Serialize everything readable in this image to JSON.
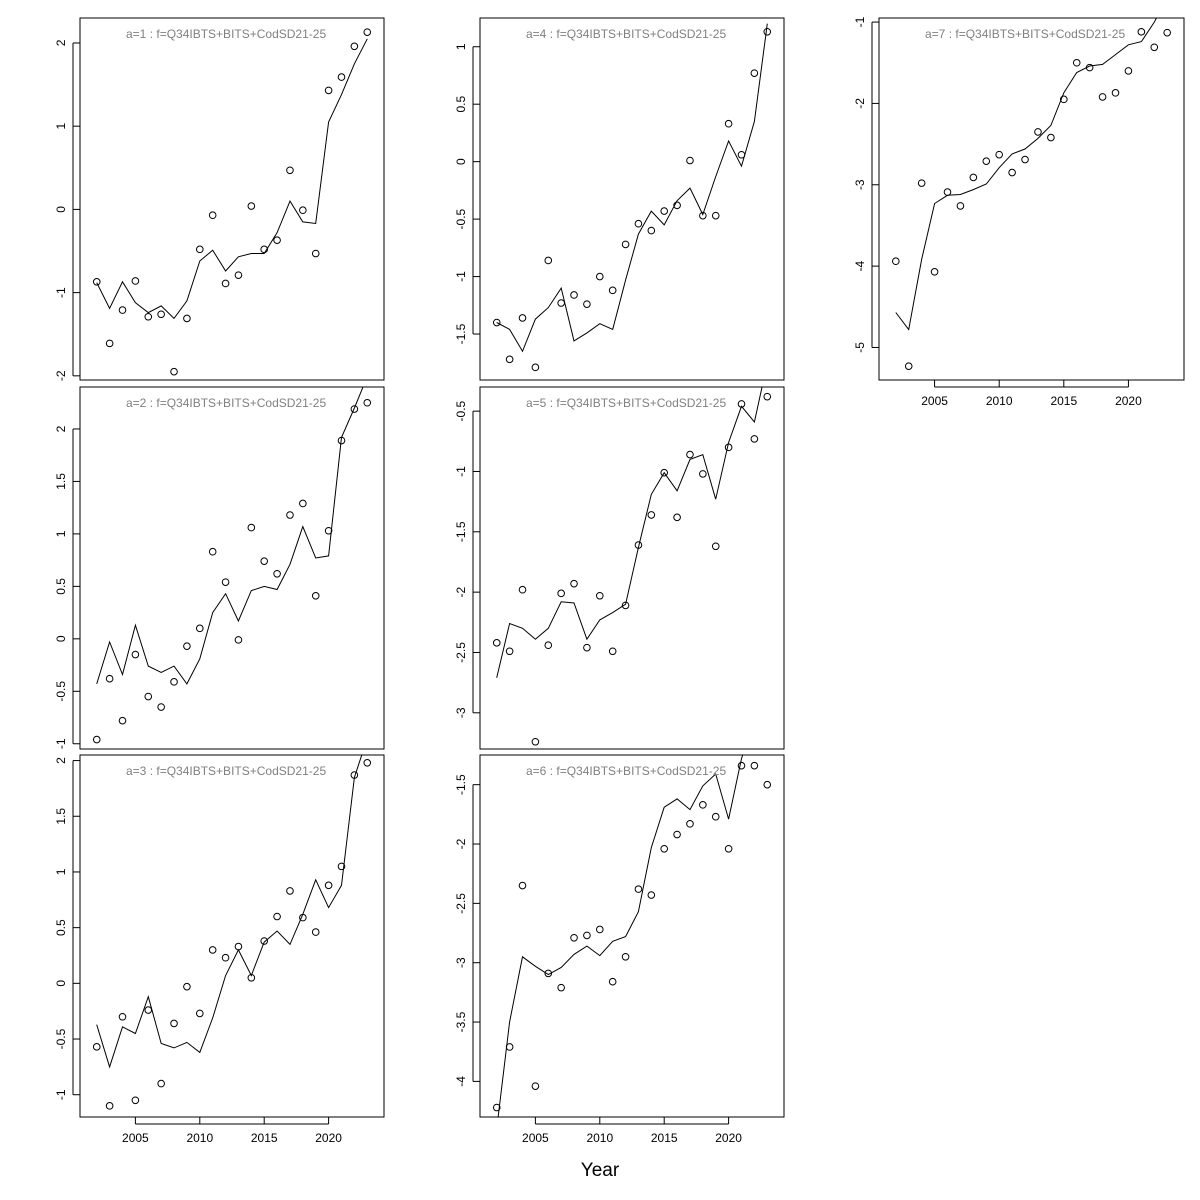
{
  "xlabel": "Year",
  "chart_data": [
    {
      "type": "line+scatter",
      "title": "a=1 : f=Q34IBTS+BITS+CodSD21-25",
      "ylim": [
        -2.05,
        2.3
      ],
      "yticks": [
        -2,
        -1,
        0,
        1,
        2
      ],
      "x": [
        2002,
        2003,
        2004,
        2005,
        2006,
        2007,
        2008,
        2009,
        2010,
        2011,
        2012,
        2013,
        2014,
        2015,
        2016,
        2017,
        2018,
        2019,
        2020,
        2021,
        2022,
        2023
      ],
      "fitted": [
        -0.88,
        -1.19,
        -0.87,
        -1.12,
        -1.24,
        -1.16,
        -1.31,
        -1.1,
        -0.62,
        -0.49,
        -0.74,
        -0.57,
        -0.53,
        -0.53,
        -0.28,
        0.1,
        -0.15,
        -0.17,
        1.05,
        1.38,
        1.75,
        2.05
      ],
      "observed": [
        -0.87,
        -1.61,
        -1.21,
        -0.86,
        -1.29,
        -1.26,
        -1.95,
        -1.31,
        -0.48,
        -0.07,
        -0.89,
        -0.79,
        0.04,
        -0.48,
        -0.37,
        0.47,
        -0.01,
        -0.53,
        1.43,
        1.59,
        1.96,
        2.13
      ]
    },
    {
      "type": "line+scatter",
      "title": "a=2 : f=Q34IBTS+BITS+CodSD21-25",
      "ylim": [
        -1.05,
        2.4
      ],
      "yticks": [
        -1.0,
        -0.5,
        0.0,
        0.5,
        1.0,
        1.5,
        2.0
      ],
      "x": [
        2002,
        2003,
        2004,
        2005,
        2006,
        2007,
        2008,
        2009,
        2010,
        2011,
        2012,
        2013,
        2014,
        2015,
        2016,
        2017,
        2018,
        2019,
        2020,
        2021,
        2022,
        2023
      ],
      "fitted": [
        -0.43,
        -0.03,
        -0.34,
        0.13,
        -0.26,
        -0.32,
        -0.26,
        -0.43,
        -0.19,
        0.25,
        0.43,
        0.17,
        0.46,
        0.5,
        0.47,
        0.71,
        1.07,
        0.77,
        0.79,
        1.92,
        2.2,
        2.5
      ],
      "observed": [
        -0.96,
        -0.38,
        -0.78,
        -0.15,
        -0.55,
        -0.65,
        -0.41,
        -0.07,
        0.1,
        0.83,
        0.54,
        -0.01,
        1.06,
        0.74,
        0.62,
        1.18,
        1.29,
        0.41,
        1.03,
        1.89,
        2.19,
        2.25
      ]
    },
    {
      "type": "line+scatter",
      "title": "a=3 : f=Q34IBTS+BITS+CodSD21-25",
      "ylim": [
        -1.2,
        2.05
      ],
      "yticks": [
        -1.0,
        -0.5,
        0.0,
        0.5,
        1.0,
        1.5,
        2.0
      ],
      "x": [
        2002,
        2003,
        2004,
        2005,
        2006,
        2007,
        2008,
        2009,
        2010,
        2011,
        2012,
        2013,
        2014,
        2015,
        2016,
        2017,
        2018,
        2019,
        2020,
        2021,
        2022,
        2023
      ],
      "fitted": [
        -0.37,
        -0.75,
        -0.39,
        -0.45,
        -0.12,
        -0.54,
        -0.58,
        -0.53,
        -0.62,
        -0.31,
        0.07,
        0.3,
        0.07,
        0.37,
        0.47,
        0.35,
        0.62,
        0.93,
        0.68,
        0.88,
        1.85,
        2.2
      ],
      "observed": [
        -0.57,
        -1.1,
        -0.3,
        -1.05,
        -0.24,
        -0.9,
        -0.36,
        -0.03,
        -0.27,
        0.3,
        0.23,
        0.33,
        0.05,
        0.38,
        0.6,
        0.83,
        0.59,
        0.46,
        0.88,
        1.05,
        1.87,
        1.98
      ]
    },
    {
      "type": "line+scatter",
      "title": "a=4 : f=Q34IBTS+BITS+CodSD21-25",
      "ylim": [
        -1.9,
        1.25
      ],
      "yticks": [
        -1.5,
        -1.0,
        -0.5,
        0.0,
        0.5,
        1.0
      ],
      "x": [
        2002,
        2003,
        2004,
        2005,
        2006,
        2007,
        2008,
        2009,
        2010,
        2011,
        2012,
        2013,
        2014,
        2015,
        2016,
        2017,
        2018,
        2019,
        2020,
        2021,
        2022,
        2023
      ],
      "fitted": [
        -1.4,
        -1.46,
        -1.65,
        -1.37,
        -1.27,
        -1.1,
        -1.56,
        -1.49,
        -1.41,
        -1.46,
        -1.03,
        -0.63,
        -0.43,
        -0.55,
        -0.34,
        -0.23,
        -0.46,
        -0.13,
        0.18,
        -0.04,
        0.35,
        1.2
      ],
      "observed": [
        -1.4,
        -1.72,
        -1.36,
        -1.79,
        -0.86,
        -1.23,
        -1.16,
        -1.24,
        -1.0,
        -1.12,
        -0.72,
        -0.54,
        -0.6,
        -0.43,
        -0.38,
        0.01,
        -0.47,
        -0.47,
        0.33,
        0.06,
        0.77,
        1.13
      ]
    },
    {
      "type": "line+scatter",
      "title": "a=5 : f=Q34IBTS+BITS+CodSD21-25",
      "ylim": [
        -3.3,
        -0.3
      ],
      "yticks": [
        -3.0,
        -2.5,
        -2.0,
        -1.5,
        -1.0,
        -0.5
      ],
      "x": [
        2002,
        2003,
        2004,
        2005,
        2006,
        2007,
        2008,
        2009,
        2010,
        2011,
        2012,
        2013,
        2014,
        2015,
        2016,
        2017,
        2018,
        2019,
        2020,
        2021,
        2022,
        2023
      ],
      "fitted": [
        -2.71,
        -2.26,
        -2.3,
        -2.39,
        -2.3,
        -2.08,
        -2.09,
        -2.39,
        -2.23,
        -2.17,
        -2.1,
        -1.63,
        -1.19,
        -1.01,
        -1.16,
        -0.9,
        -0.86,
        -1.23,
        -0.76,
        -0.46,
        -0.59,
        -0.1
      ],
      "observed": [
        -2.42,
        -2.49,
        -1.98,
        -3.24,
        -2.44,
        -2.01,
        -1.93,
        -2.46,
        -2.03,
        -2.49,
        -2.11,
        -1.61,
        -1.36,
        -1.01,
        -1.38,
        -0.86,
        -1.02,
        -1.62,
        -0.8,
        -0.44,
        -0.73,
        -0.38
      ]
    },
    {
      "type": "line+scatter",
      "title": "a=6 : f=Q34IBTS+BITS+CodSD21-25",
      "ylim": [
        -4.3,
        -1.25
      ],
      "yticks": [
        -4.0,
        -3.5,
        -3.0,
        -2.5,
        -2.0,
        -1.5
      ],
      "x": [
        2002,
        2003,
        2004,
        2005,
        2006,
        2007,
        2008,
        2009,
        2010,
        2011,
        2012,
        2013,
        2014,
        2015,
        2016,
        2017,
        2018,
        2019,
        2020,
        2021,
        2022,
        2023
      ],
      "fitted": [
        -4.4,
        -3.5,
        -2.95,
        -3.03,
        -3.1,
        -3.04,
        -2.93,
        -2.86,
        -2.94,
        -2.82,
        -2.78,
        -2.57,
        -2.03,
        -1.69,
        -1.62,
        -1.71,
        -1.51,
        -1.41,
        -1.79,
        -1.28,
        -0.95,
        -0.5
      ],
      "observed": [
        -4.22,
        -3.71,
        -2.35,
        -4.04,
        -3.09,
        -3.21,
        -2.79,
        -2.77,
        -2.72,
        -3.16,
        -2.95,
        -2.38,
        -2.43,
        -2.04,
        -1.92,
        -1.83,
        -1.67,
        -1.77,
        -2.04,
        -1.34,
        -1.34,
        -1.5
      ]
    },
    {
      "type": "line+scatter",
      "title": "a=7 : f=Q34IBTS+BITS+CodSD21-25",
      "ylim": [
        -5.4,
        -0.95
      ],
      "yticks": [
        -5,
        -4,
        -3,
        -2,
        -1
      ],
      "x": [
        2002,
        2003,
        2004,
        2005,
        2006,
        2007,
        2008,
        2009,
        2010,
        2011,
        2012,
        2013,
        2014,
        2015,
        2016,
        2017,
        2018,
        2019,
        2020,
        2021,
        2022,
        2023
      ],
      "fitted": [
        -4.57,
        -4.78,
        -3.92,
        -3.23,
        -3.13,
        -3.12,
        -3.06,
        -2.99,
        -2.79,
        -2.62,
        -2.56,
        -2.43,
        -2.27,
        -1.87,
        -1.62,
        -1.54,
        -1.52,
        -1.4,
        -1.28,
        -1.24,
        -1.0,
        -0.7
      ],
      "observed": [
        -3.94,
        -5.23,
        -2.98,
        -4.07,
        -3.09,
        -3.26,
        -2.91,
        -2.71,
        -2.63,
        -2.85,
        -2.69,
        -2.35,
        -2.42,
        -1.95,
        -1.5,
        -1.56,
        -1.92,
        -1.87,
        -1.6,
        -1.12,
        -1.31,
        -1.13
      ]
    }
  ],
  "xaxis": {
    "xlim": [
      2000.7,
      2024.3
    ],
    "ticks": [
      2005,
      2010,
      2015,
      2020
    ]
  }
}
